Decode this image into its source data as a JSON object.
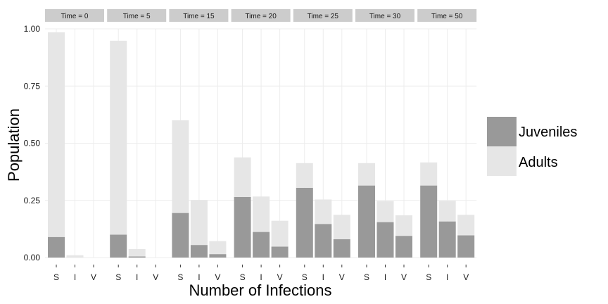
{
  "chart_data": {
    "type": "bar",
    "stacked": true,
    "xlabel": "Number of Infections",
    "ylabel": "Population",
    "ylim": [
      0,
      1.0
    ],
    "yticks": [
      "0.00",
      "0.25",
      "0.50",
      "0.75",
      "1.00"
    ],
    "ytick_values": [
      0,
      0.25,
      0.5,
      0.75,
      1.0
    ],
    "categories": [
      "S",
      "I",
      "V"
    ],
    "grid": true,
    "legend": "right",
    "colors": {
      "Juveniles": "#999999",
      "Adults": "#e6e6e6",
      "strip": "#cccccc",
      "grid": "#ececec"
    },
    "series_order": [
      "Juveniles",
      "Adults"
    ],
    "facets": [
      {
        "label": "Time = 0",
        "Juveniles": [
          0.09,
          0.0,
          0.0
        ],
        "Adults": [
          0.895,
          0.01,
          0.0
        ]
      },
      {
        "label": "Time = 5",
        "Juveniles": [
          0.1,
          0.005,
          0.0
        ],
        "Adults": [
          0.848,
          0.032,
          0.0
        ]
      },
      {
        "label": "Time = 15",
        "Juveniles": [
          0.195,
          0.055,
          0.015
        ],
        "Adults": [
          0.405,
          0.197,
          0.057
        ]
      },
      {
        "label": "Time = 20",
        "Juveniles": [
          0.265,
          0.112,
          0.048
        ],
        "Adults": [
          0.173,
          0.155,
          0.113
        ]
      },
      {
        "label": "Time = 25",
        "Juveniles": [
          0.305,
          0.147,
          0.08
        ],
        "Adults": [
          0.108,
          0.107,
          0.107
        ]
      },
      {
        "label": "Time = 30",
        "Juveniles": [
          0.315,
          0.155,
          0.095
        ],
        "Adults": [
          0.098,
          0.092,
          0.09
        ]
      },
      {
        "label": "Time = 50",
        "Juveniles": [
          0.315,
          0.158,
          0.097
        ],
        "Adults": [
          0.101,
          0.09,
          0.09
        ]
      }
    ]
  }
}
